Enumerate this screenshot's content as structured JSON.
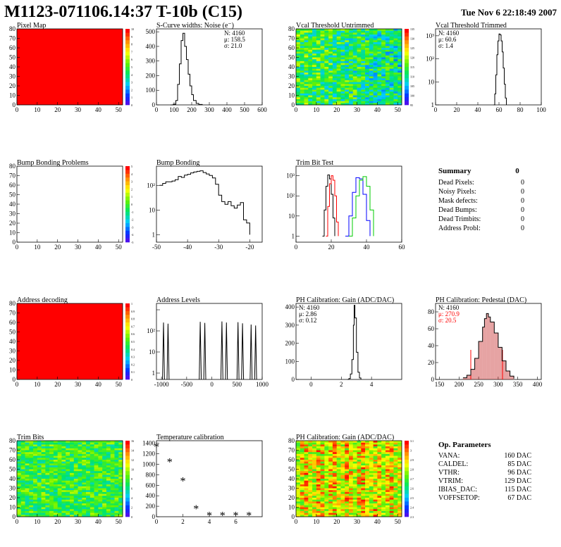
{
  "header": {
    "title": "M1123-071106.14:37 T-10b (C15)",
    "date": "Tue Nov  6 22:18:49 2007"
  },
  "colors": {
    "red": "#ff0000",
    "green": "#00cc00",
    "blue": "#0000ff",
    "pedestal_fill": "#c83232"
  },
  "chart_data": [
    {
      "id": "pixel_map",
      "type": "heatmap",
      "title": "Pixel Map",
      "xlim": [
        0,
        52
      ],
      "ylim": [
        0,
        80
      ],
      "xticks": [
        0,
        10,
        20,
        30,
        40,
        50
      ],
      "yticks": [
        0,
        10,
        20,
        30,
        40,
        50,
        60,
        70,
        80
      ],
      "fill": "uniform-red",
      "palette_labels": [
        "10",
        "9",
        "8",
        "7",
        "6",
        "5",
        "4",
        "3",
        "2",
        "1",
        "0"
      ]
    },
    {
      "id": "scurve",
      "type": "line",
      "title": "S-Curve widths: Noise (e⁻)",
      "xlim": [
        0,
        600
      ],
      "ylim": [
        0,
        520
      ],
      "xticks": [
        0,
        100,
        200,
        300,
        400,
        500,
        600
      ],
      "yticks": [
        0,
        100,
        200,
        300,
        400,
        500
      ],
      "stats": [
        "N: 4160",
        "μ: 158.5",
        "σ: 21.0"
      ],
      "x": [
        80,
        95,
        110,
        120,
        130,
        140,
        150,
        160,
        170,
        180,
        190,
        200,
        210,
        225,
        240,
        260
      ],
      "y": [
        0,
        5,
        30,
        140,
        280,
        440,
        490,
        400,
        310,
        210,
        130,
        70,
        30,
        10,
        3,
        0
      ]
    },
    {
      "id": "vcal_untrimmed",
      "type": "heatmap",
      "title": "Vcal Threshold Untrimmed",
      "xlim": [
        0,
        52
      ],
      "ylim": [
        0,
        80
      ],
      "xticks": [
        0,
        10,
        20,
        30,
        40,
        50
      ],
      "yticks": [
        0,
        10,
        20,
        30,
        40,
        50,
        60,
        70,
        80
      ],
      "fill": "noisy-mid",
      "palette_labels": [
        "135",
        "130",
        "125",
        "120",
        "115",
        "110",
        "105",
        "100",
        "95"
      ]
    },
    {
      "id": "vcal_trimmed",
      "type": "line",
      "title": "Vcal Threshold Trimmed",
      "log_y": true,
      "xlim": [
        0,
        100
      ],
      "ylim": [
        1,
        2000
      ],
      "xticks": [
        0,
        20,
        40,
        60,
        80,
        100
      ],
      "yticks_labels": [
        "1",
        "10",
        "10²",
        "10³"
      ],
      "stats": [
        "N: 4160",
        "μ: 60.6",
        "σ:  1.4"
      ],
      "x": [
        55,
        56,
        57,
        58,
        59,
        60,
        61,
        62,
        63,
        64,
        65,
        66,
        67
      ],
      "y": [
        1,
        3,
        20,
        150,
        600,
        1200,
        1100,
        600,
        200,
        40,
        8,
        2,
        1
      ]
    },
    {
      "id": "bump_problems",
      "type": "heatmap",
      "title": "Bump Bonding Problems",
      "xlim": [
        0,
        52
      ],
      "ylim": [
        0,
        80
      ],
      "xticks": [
        0,
        10,
        20,
        30,
        40,
        50
      ],
      "yticks": [
        0,
        10,
        20,
        30,
        40,
        50,
        60,
        70,
        80
      ],
      "fill": "empty",
      "palette_labels": [
        "5",
        "4",
        "3",
        "2",
        "1",
        "0",
        "-1",
        "-2",
        "-3",
        "-4",
        "-5"
      ]
    },
    {
      "id": "bump_bonding",
      "type": "line",
      "title": "Bump Bonding",
      "log_y": true,
      "xlim": [
        -50,
        -16
      ],
      "ylim": [
        0.5,
        600
      ],
      "xticks": [
        -50,
        -40,
        -30,
        -20
      ],
      "yticks_labels": [
        "1",
        "10",
        "10²"
      ],
      "x": [
        -49,
        -48,
        -47,
        -46,
        -45,
        -44,
        -43,
        -42,
        -41,
        -40,
        -39,
        -38,
        -37,
        -36,
        -35,
        -34,
        -33,
        -32,
        -31,
        -30,
        -29,
        -28,
        -27,
        -26,
        -25,
        -24,
        -23,
        -22,
        -21,
        -20
      ],
      "y": [
        100,
        120,
        140,
        140,
        150,
        170,
        230,
        210,
        260,
        280,
        320,
        350,
        370,
        390,
        330,
        290,
        250,
        200,
        110,
        40,
        22,
        17,
        22,
        15,
        12,
        16,
        20,
        4,
        3,
        1
      ]
    },
    {
      "id": "trim_bit_test",
      "type": "line",
      "title": "Trim Bit Test",
      "log_y": true,
      "xlim": [
        0,
        60
      ],
      "ylim": [
        0.5,
        3000
      ],
      "xticks": [
        0,
        20,
        40,
        60
      ],
      "yticks_labels": [
        "1",
        "10",
        "10²",
        "10³"
      ],
      "series": [
        {
          "color": "#000000",
          "x": [
            15,
            16,
            17,
            18,
            19,
            20,
            21,
            22
          ],
          "y": [
            1,
            20,
            300,
            1100,
            700,
            120,
            8,
            1
          ]
        },
        {
          "color": "#ff0000",
          "x": [
            17,
            18,
            19,
            20,
            21,
            22,
            23,
            24
          ],
          "y": [
            1,
            30,
            400,
            1000,
            600,
            100,
            5,
            1
          ]
        },
        {
          "color": "#0000ff",
          "x": [
            28,
            30,
            32,
            34,
            36,
            38,
            40,
            42
          ],
          "y": [
            1,
            10,
            150,
            800,
            700,
            120,
            6,
            1
          ]
        },
        {
          "color": "#00cc00",
          "x": [
            30,
            32,
            34,
            36,
            38,
            40,
            42,
            44
          ],
          "y": [
            1,
            8,
            100,
            600,
            900,
            300,
            20,
            1
          ]
        }
      ]
    },
    {
      "id": "address_decoding",
      "type": "heatmap",
      "title": "Address decoding",
      "xlim": [
        0,
        52
      ],
      "ylim": [
        0,
        80
      ],
      "xticks": [
        0,
        10,
        20,
        30,
        40,
        50
      ],
      "yticks": [
        0,
        10,
        20,
        30,
        40,
        50,
        60,
        70,
        80
      ],
      "fill": "uniform-red",
      "palette_labels": [
        "1",
        "0.9",
        "0.8",
        "0.7",
        "0.6",
        "0.5",
        "0.4",
        "0.3",
        "0.2",
        "0.1",
        "0"
      ]
    },
    {
      "id": "address_levels",
      "type": "line",
      "title": "Address Levels",
      "log_y": true,
      "xlim": [
        -1100,
        1000
      ],
      "ylim": [
        0.5,
        2000
      ],
      "xticks": [
        -1000,
        -500,
        0,
        500,
        1000
      ],
      "yticks_labels": [
        "1",
        "10",
        "10²"
      ],
      "peaks": [
        -960,
        -870,
        -230,
        -140,
        200,
        290,
        520,
        610,
        780,
        870
      ],
      "peak_heights": [
        250,
        220,
        270,
        240,
        280,
        250,
        260,
        230,
        200,
        180
      ]
    },
    {
      "id": "ph_gain",
      "type": "line",
      "title": "PH Calibration: Gain (ADC/DAC)",
      "xlim": [
        -1,
        6
      ],
      "ylim": [
        0,
        420
      ],
      "xticks": [
        0,
        2,
        4
      ],
      "yticks": [
        0,
        100,
        200,
        300,
        400
      ],
      "stats": [
        "N: 4160",
        "μ: 2.86",
        "σ: 0.12"
      ],
      "x": [
        2.4,
        2.5,
        2.6,
        2.7,
        2.8,
        2.85,
        2.9,
        3.0,
        3.1,
        3.2,
        3.3
      ],
      "y": [
        0,
        5,
        30,
        110,
        300,
        410,
        340,
        150,
        40,
        8,
        0
      ]
    },
    {
      "id": "ph_pedestal",
      "type": "line",
      "title": "PH Calibration: Pedestal (DAC)",
      "xlim": [
        140,
        410
      ],
      "ylim": [
        0,
        90
      ],
      "xticks": [
        150,
        200,
        250,
        300,
        350,
        400
      ],
      "yticks": [
        0,
        20,
        40,
        60,
        80
      ],
      "stats": [
        "N: 4160",
        "μ: 270.9",
        "σ: 20.5"
      ],
      "x": [
        210,
        220,
        230,
        240,
        250,
        260,
        265,
        270,
        275,
        280,
        290,
        300,
        310,
        320,
        330,
        340
      ],
      "y": [
        2,
        5,
        12,
        25,
        45,
        62,
        72,
        78,
        74,
        68,
        55,
        38,
        22,
        10,
        4,
        1
      ]
    },
    {
      "id": "trim_bits",
      "type": "heatmap",
      "title": "Trim Bits",
      "xlim": [
        0,
        52
      ],
      "ylim": [
        0,
        80
      ],
      "xticks": [
        0,
        10,
        20,
        30,
        40,
        50
      ],
      "yticks": [
        0,
        10,
        20,
        30,
        40,
        50,
        60,
        70,
        80
      ],
      "fill": "noisy-green",
      "palette_labels": [
        "16",
        "14",
        "12",
        "10",
        "8",
        "6",
        "4",
        "2",
        "0"
      ]
    },
    {
      "id": "temperature",
      "type": "scatter",
      "title": "Temperature calibration",
      "xlim": [
        0,
        8
      ],
      "ylim": [
        0,
        1450
      ],
      "xticks": [
        0,
        2,
        4,
        6
      ],
      "yticks": [
        0,
        200,
        400,
        600,
        800,
        1000,
        1200,
        1400
      ],
      "x": [
        0,
        1,
        2,
        3,
        4,
        5,
        6,
        7
      ],
      "y": [
        1330,
        1040,
        680,
        150,
        20,
        20,
        20,
        20
      ]
    },
    {
      "id": "ph_gain_map",
      "type": "heatmap",
      "title": "PH Calibration: Gain (ADC/DAC)",
      "xlim": [
        0,
        52
      ],
      "ylim": [
        0,
        80
      ],
      "xticks": [
        0,
        10,
        20,
        30,
        40,
        50
      ],
      "yticks": [
        0,
        10,
        20,
        30,
        40,
        50,
        60,
        70,
        80
      ],
      "fill": "noisy-hot",
      "palette_labels": [
        "3.1",
        "3",
        "2.9",
        "2.8",
        "2.7",
        "2.6",
        "2.5",
        "2.4",
        "2.3"
      ]
    }
  ],
  "summary": {
    "title": "Summary",
    "total": "0",
    "rows": [
      {
        "label": "Dead Pixels:",
        "value": "0"
      },
      {
        "label": "Noisy Pixels:",
        "value": "0"
      },
      {
        "label": "Mask defects:",
        "value": "0"
      },
      {
        "label": "Dead Bumps:",
        "value": "0"
      },
      {
        "label": "Dead Trimbits:",
        "value": "0"
      },
      {
        "label": "Address Probl:",
        "value": "0"
      }
    ]
  },
  "op_params": {
    "title": "Op. Parameters",
    "rows": [
      {
        "label": "VANA:",
        "value": "160 DAC"
      },
      {
        "label": "CALDEL:",
        "value": "85 DAC"
      },
      {
        "label": "VTHR:",
        "value": "96 DAC"
      },
      {
        "label": "VTRIM:",
        "value": "129 DAC"
      },
      {
        "label": "IBIAS_DAC:",
        "value": "115 DAC"
      },
      {
        "label": "VOFFSETOP:",
        "value": "67 DAC"
      }
    ]
  }
}
